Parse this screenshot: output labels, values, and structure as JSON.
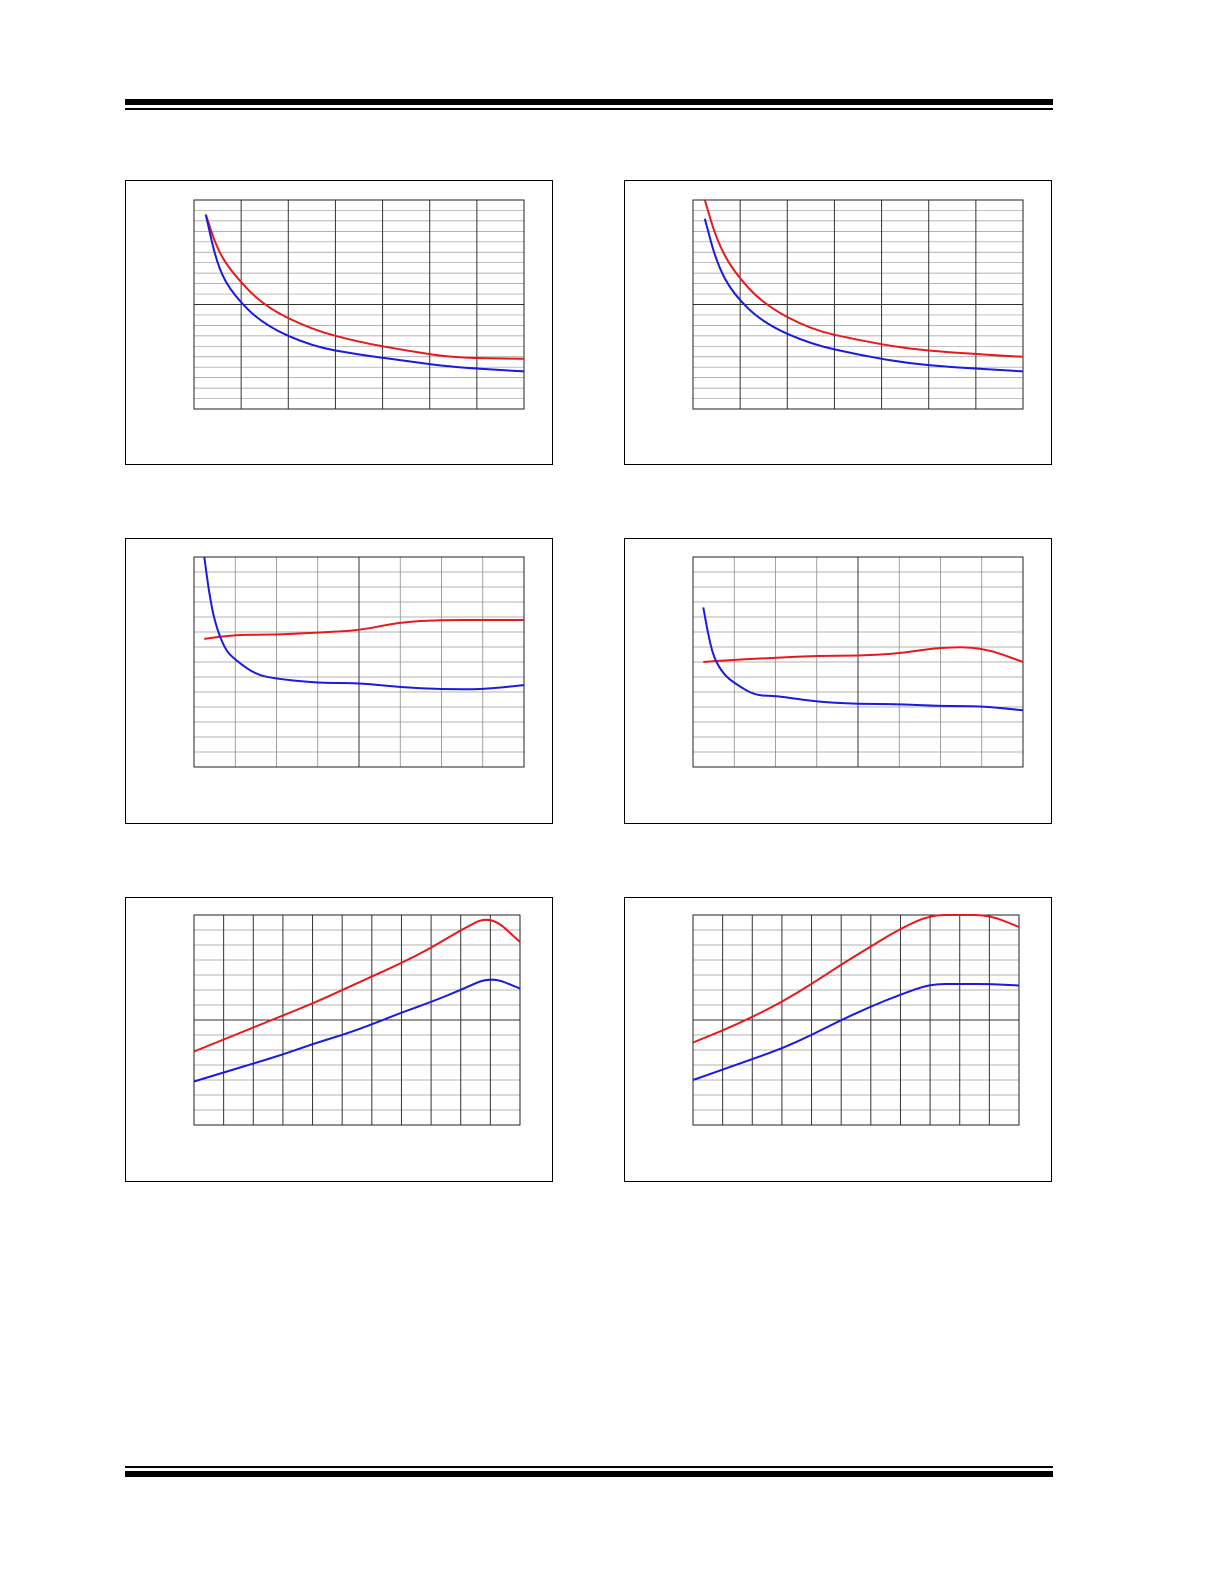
{
  "page": {
    "rule_color": "#000000",
    "series_colors": [
      "#e8191d",
      "#1a1ae0"
    ]
  },
  "chart_data": [
    {
      "type": "line",
      "xlim": [
        0,
        7
      ],
      "ylim": [
        0,
        10
      ],
      "grid": true,
      "series": [
        {
          "color": "#e8191d",
          "x": [
            0.25,
            0.5,
            0.85,
            1.5,
            2.5,
            3.5,
            4.5,
            5.5,
            7.0
          ],
          "y": [
            9.3,
            7.6,
            6.4,
            4.9,
            3.8,
            3.2,
            2.8,
            2.45,
            2.4
          ]
        },
        {
          "color": "#1a1ae0",
          "x": [
            0.25,
            0.5,
            0.85,
            1.5,
            2.5,
            3.5,
            4.5,
            5.5,
            7.0
          ],
          "y": [
            9.3,
            6.8,
            5.4,
            4.0,
            3.0,
            2.6,
            2.3,
            2.0,
            1.8
          ]
        }
      ]
    },
    {
      "type": "line",
      "xlim": [
        0,
        7
      ],
      "ylim": [
        0,
        10
      ],
      "grid": true,
      "series": [
        {
          "color": "#e8191d",
          "x": [
            0.25,
            0.5,
            0.85,
            1.5,
            2.5,
            3.5,
            4.5,
            5.5,
            7.0
          ],
          "y": [
            10.0,
            8.1,
            6.6,
            5.0,
            3.8,
            3.3,
            2.9,
            2.7,
            2.5
          ]
        },
        {
          "color": "#1a1ae0",
          "x": [
            0.25,
            0.5,
            0.85,
            1.5,
            2.5,
            3.5,
            4.5,
            5.5,
            7.0
          ],
          "y": [
            9.1,
            7.0,
            5.5,
            4.1,
            3.1,
            2.6,
            2.2,
            2.0,
            1.8
          ]
        }
      ]
    },
    {
      "type": "line",
      "xlim": [
        0,
        8
      ],
      "ylim": [
        0,
        10
      ],
      "grid": true,
      "series": [
        {
          "color": "#e8191d",
          "x": [
            0.25,
            1.0,
            2.0,
            3.0,
            4.0,
            5.0,
            6.0,
            7.0,
            8.0
          ],
          "y": [
            6.1,
            6.3,
            6.3,
            6.4,
            6.5,
            6.9,
            7.0,
            7.0,
            7.0
          ]
        },
        {
          "color": "#1a1ae0",
          "x": [
            0.25,
            0.35,
            0.5,
            0.75,
            1.0,
            1.5,
            2.0,
            3.0,
            4.0,
            5.0,
            6.0,
            7.0,
            8.0
          ],
          "y": [
            10.0,
            8.5,
            6.9,
            5.6,
            5.1,
            4.4,
            4.2,
            4.0,
            4.0,
            3.8,
            3.7,
            3.7,
            3.9
          ]
        }
      ]
    },
    {
      "type": "line",
      "xlim": [
        0,
        8
      ],
      "ylim": [
        0,
        10
      ],
      "grid": true,
      "series": [
        {
          "color": "#e8191d",
          "x": [
            0.25,
            1.0,
            2.0,
            3.0,
            4.0,
            5.0,
            6.0,
            7.0,
            8.0
          ],
          "y": [
            5.0,
            5.1,
            5.2,
            5.3,
            5.3,
            5.4,
            5.7,
            5.7,
            5.0
          ]
        },
        {
          "color": "#1a1ae0",
          "x": [
            0.25,
            0.35,
            0.5,
            0.75,
            1.0,
            1.5,
            2.0,
            3.0,
            4.0,
            5.0,
            6.0,
            7.0,
            8.0
          ],
          "y": [
            7.6,
            6.5,
            5.2,
            4.4,
            4.0,
            3.4,
            3.4,
            3.1,
            3.0,
            3.0,
            2.9,
            2.9,
            2.7
          ]
        }
      ]
    },
    {
      "type": "line",
      "xlim": [
        0,
        11
      ],
      "ylim": [
        0,
        7
      ],
      "grid": true,
      "series": [
        {
          "color": "#e8191d",
          "x": [
            0,
            1,
            2,
            3,
            4,
            5,
            6,
            7,
            8,
            9,
            10,
            11
          ],
          "y": [
            2.45,
            2.85,
            3.25,
            3.65,
            4.05,
            4.5,
            4.95,
            5.4,
            5.9,
            6.5,
            7.0,
            6.1
          ]
        },
        {
          "color": "#1a1ae0",
          "x": [
            0,
            1,
            2,
            3,
            4,
            5,
            6,
            7,
            8,
            9,
            10,
            11
          ],
          "y": [
            1.45,
            1.75,
            2.05,
            2.35,
            2.7,
            3.0,
            3.35,
            3.75,
            4.1,
            4.5,
            4.95,
            4.55
          ]
        }
      ]
    },
    {
      "type": "line",
      "xlim": [
        0,
        11
      ],
      "ylim": [
        0,
        7
      ],
      "grid": true,
      "series": [
        {
          "color": "#e8191d",
          "x": [
            0,
            1,
            2,
            3,
            4,
            5,
            6,
            7,
            8,
            9,
            10,
            11
          ],
          "y": [
            2.75,
            3.15,
            3.6,
            4.1,
            4.7,
            5.35,
            5.95,
            6.55,
            7.0,
            7.0,
            7.0,
            6.6
          ]
        },
        {
          "color": "#1a1ae0",
          "x": [
            0,
            1,
            2,
            3,
            4,
            5,
            6,
            7,
            8,
            9,
            10,
            11
          ],
          "y": [
            1.5,
            1.85,
            2.2,
            2.55,
            3.0,
            3.5,
            3.95,
            4.35,
            4.7,
            4.7,
            4.7,
            4.65
          ]
        }
      ]
    }
  ]
}
